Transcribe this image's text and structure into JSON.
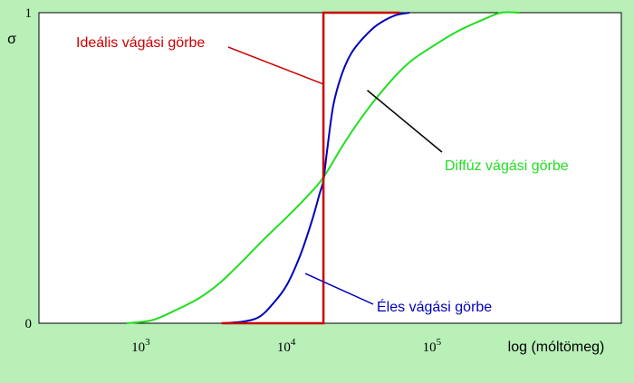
{
  "chart_data": {
    "type": "line",
    "xlabel": "log (móltömeg)",
    "ylabel": "σ",
    "x_scale": "log",
    "xlim": [
      200,
      2000000
    ],
    "ylim": [
      0,
      1
    ],
    "y_ticks": [
      {
        "value": 0,
        "label": "0"
      },
      {
        "value": 1,
        "label": "1"
      }
    ],
    "x_ticks": [
      {
        "value": 1000,
        "base": "10",
        "exp": "3"
      },
      {
        "value": 10000,
        "base": "10",
        "exp": "4"
      },
      {
        "value": 100000,
        "base": "10",
        "exp": "5"
      }
    ],
    "grid": false,
    "background_color": "#b8f0b8",
    "plot_background": "#ffffff",
    "series": [
      {
        "name": "Ideális vágási görbe",
        "color": "#cc0000",
        "points": [
          [
            3600,
            0
          ],
          [
            18000,
            0
          ],
          [
            18000,
            1
          ],
          [
            60000,
            1
          ]
        ]
      },
      {
        "name": "Éles vágási görbe",
        "color": "#0000bb",
        "points": [
          [
            3600,
            0
          ],
          [
            5000,
            0.005
          ],
          [
            6500,
            0.02
          ],
          [
            8000,
            0.06
          ],
          [
            10000,
            0.12
          ],
          [
            12500,
            0.22
          ],
          [
            15000,
            0.33
          ],
          [
            17000,
            0.42
          ],
          [
            18000,
            0.46
          ],
          [
            19000,
            0.55
          ],
          [
            21000,
            0.7
          ],
          [
            24000,
            0.8
          ],
          [
            28000,
            0.87
          ],
          [
            34000,
            0.92
          ],
          [
            42000,
            0.96
          ],
          [
            55000,
            0.99
          ],
          [
            70000,
            1
          ]
        ]
      },
      {
        "name": "Diffúz vágási görbe",
        "color": "#22dd22",
        "points": [
          [
            800,
            0
          ],
          [
            1200,
            0.01
          ],
          [
            1700,
            0.04
          ],
          [
            2500,
            0.08
          ],
          [
            3500,
            0.13
          ],
          [
            5000,
            0.2
          ],
          [
            7000,
            0.27
          ],
          [
            10000,
            0.34
          ],
          [
            14000,
            0.41
          ],
          [
            18000,
            0.47
          ],
          [
            25000,
            0.58
          ],
          [
            35000,
            0.68
          ],
          [
            50000,
            0.77
          ],
          [
            70000,
            0.84
          ],
          [
            100000,
            0.89
          ],
          [
            150000,
            0.94
          ],
          [
            230000,
            0.98
          ],
          [
            300000,
            1
          ],
          [
            400000,
            1
          ]
        ]
      }
    ],
    "annotations": [
      {
        "text": "Ideális vágási görbe",
        "color": "#cc0000",
        "target": [
          18000,
          0.77
        ]
      },
      {
        "text": "Diffúz vágási görbe",
        "color": "#22dd22",
        "target": [
          36000,
          0.75
        ]
      },
      {
        "text": "Éles vágási görbe",
        "color": "#0000bb",
        "target": [
          13500,
          0.16
        ]
      }
    ]
  }
}
